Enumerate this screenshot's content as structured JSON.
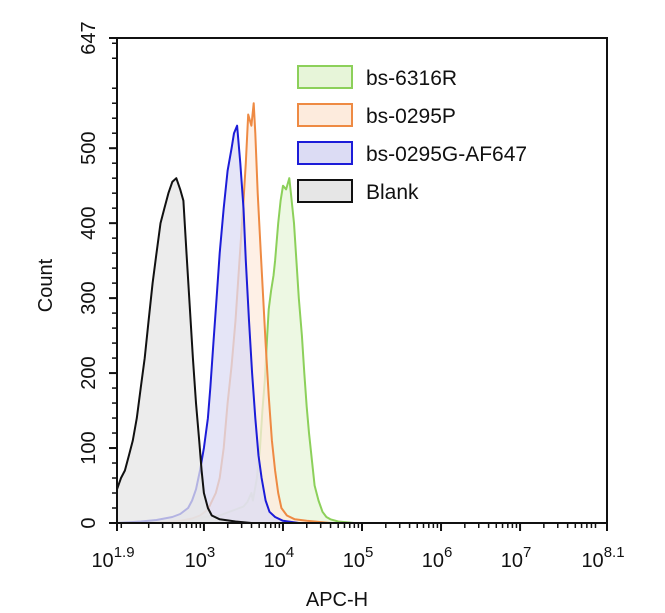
{
  "chart_data": {
    "type": "area",
    "title": "",
    "xlabel": "APC-H",
    "ylabel": "Count",
    "x_scale": "log10",
    "xlim_log10": [
      1.9,
      8.1
    ],
    "ylim": [
      0,
      647
    ],
    "x_ticks": [
      {
        "exp": 1.9,
        "base": "10",
        "sup": "1.9"
      },
      {
        "exp": 3,
        "base": "10",
        "sup": "3"
      },
      {
        "exp": 4,
        "base": "10",
        "sup": "4"
      },
      {
        "exp": 5,
        "base": "10",
        "sup": "5"
      },
      {
        "exp": 6,
        "base": "10",
        "sup": "6"
      },
      {
        "exp": 7,
        "base": "10",
        "sup": "7"
      },
      {
        "exp": 8.1,
        "base": "10",
        "sup": "8.1"
      }
    ],
    "y_ticks": [
      "0",
      "100",
      "200",
      "300",
      "400",
      "500",
      "647"
    ],
    "y_tick_values": [
      0,
      100,
      200,
      300,
      400,
      500,
      647
    ],
    "grid": false,
    "legend_position": "top-right",
    "series": [
      {
        "name": "bs-6316R",
        "color": "#8cd05a",
        "fill": "#e7f5d9",
        "points": [
          [
            2.0,
            0
          ],
          [
            2.5,
            1
          ],
          [
            2.7,
            2
          ],
          [
            2.9,
            5
          ],
          [
            3.0,
            8
          ],
          [
            3.2,
            10
          ],
          [
            3.4,
            18
          ],
          [
            3.5,
            22
          ],
          [
            3.55,
            28
          ],
          [
            3.6,
            40
          ],
          [
            3.62,
            30
          ],
          [
            3.67,
            60
          ],
          [
            3.71,
            100
          ],
          [
            3.74,
            150
          ],
          [
            3.77,
            190
          ],
          [
            3.8,
            250
          ],
          [
            3.82,
            285
          ],
          [
            3.85,
            310
          ],
          [
            3.88,
            330
          ],
          [
            3.9,
            350
          ],
          [
            3.94,
            400
          ],
          [
            3.97,
            430
          ],
          [
            4.0,
            450
          ],
          [
            4.04,
            445
          ],
          [
            4.08,
            460
          ],
          [
            4.1,
            440
          ],
          [
            4.14,
            400
          ],
          [
            4.17,
            350
          ],
          [
            4.2,
            300
          ],
          [
            4.24,
            250
          ],
          [
            4.27,
            200
          ],
          [
            4.3,
            155
          ],
          [
            4.33,
            120
          ],
          [
            4.37,
            80
          ],
          [
            4.4,
            50
          ],
          [
            4.45,
            30
          ],
          [
            4.5,
            15
          ],
          [
            4.55,
            8
          ],
          [
            4.6,
            5
          ],
          [
            4.7,
            2
          ],
          [
            4.9,
            0
          ]
        ]
      },
      {
        "name": "bs-0295P",
        "color": "#ee8a43",
        "fill": "#fdebdd",
        "points": [
          [
            2.2,
            0
          ],
          [
            2.5,
            1
          ],
          [
            2.7,
            3
          ],
          [
            2.85,
            6
          ],
          [
            2.95,
            10
          ],
          [
            3.05,
            18
          ],
          [
            3.15,
            40
          ],
          [
            3.2,
            60
          ],
          [
            3.25,
            100
          ],
          [
            3.3,
            160
          ],
          [
            3.35,
            210
          ],
          [
            3.4,
            270
          ],
          [
            3.45,
            350
          ],
          [
            3.5,
            430
          ],
          [
            3.53,
            480
          ],
          [
            3.56,
            545
          ],
          [
            3.6,
            530
          ],
          [
            3.63,
            560
          ],
          [
            3.65,
            520
          ],
          [
            3.68,
            440
          ],
          [
            3.72,
            360
          ],
          [
            3.75,
            300
          ],
          [
            3.78,
            240
          ],
          [
            3.82,
            170
          ],
          [
            3.86,
            110
          ],
          [
            3.9,
            70
          ],
          [
            3.94,
            40
          ],
          [
            3.98,
            20
          ],
          [
            4.05,
            10
          ],
          [
            4.15,
            5
          ],
          [
            4.3,
            3
          ],
          [
            4.5,
            1
          ],
          [
            4.6,
            0
          ]
        ]
      },
      {
        "name": "bs-0295G-AF647",
        "color": "#1c1cd8",
        "fill": "#dcdcf4",
        "points": [
          [
            1.9,
            0
          ],
          [
            2.2,
            2
          ],
          [
            2.4,
            4
          ],
          [
            2.6,
            8
          ],
          [
            2.7,
            12
          ],
          [
            2.8,
            20
          ],
          [
            2.85,
            30
          ],
          [
            2.9,
            45
          ],
          [
            2.95,
            70
          ],
          [
            3.0,
            100
          ],
          [
            3.05,
            140
          ],
          [
            3.08,
            180
          ],
          [
            3.12,
            240
          ],
          [
            3.16,
            300
          ],
          [
            3.2,
            360
          ],
          [
            3.25,
            420
          ],
          [
            3.3,
            470
          ],
          [
            3.35,
            500
          ],
          [
            3.38,
            520
          ],
          [
            3.42,
            530
          ],
          [
            3.46,
            480
          ],
          [
            3.5,
            420
          ],
          [
            3.53,
            350
          ],
          [
            3.57,
            270
          ],
          [
            3.61,
            200
          ],
          [
            3.65,
            140
          ],
          [
            3.69,
            90
          ],
          [
            3.73,
            60
          ],
          [
            3.78,
            30
          ],
          [
            3.83,
            15
          ],
          [
            3.9,
            8
          ],
          [
            4.0,
            3
          ],
          [
            4.2,
            0
          ]
        ]
      },
      {
        "name": "Blank",
        "color": "#111111",
        "fill": "#e6e6e6",
        "points": [
          [
            1.9,
            45
          ],
          [
            1.95,
            60
          ],
          [
            2.0,
            70
          ],
          [
            2.05,
            90
          ],
          [
            2.1,
            110
          ],
          [
            2.15,
            140
          ],
          [
            2.2,
            180
          ],
          [
            2.25,
            220
          ],
          [
            2.3,
            270
          ],
          [
            2.35,
            320
          ],
          [
            2.4,
            360
          ],
          [
            2.45,
            400
          ],
          [
            2.5,
            420
          ],
          [
            2.55,
            440
          ],
          [
            2.6,
            455
          ],
          [
            2.65,
            460
          ],
          [
            2.7,
            445
          ],
          [
            2.74,
            430
          ],
          [
            2.78,
            360
          ],
          [
            2.82,
            290
          ],
          [
            2.86,
            220
          ],
          [
            2.9,
            160
          ],
          [
            2.94,
            110
          ],
          [
            2.97,
            70
          ],
          [
            3.0,
            40
          ],
          [
            3.05,
            20
          ],
          [
            3.1,
            10
          ],
          [
            3.2,
            5
          ],
          [
            3.4,
            2
          ],
          [
            3.6,
            0
          ]
        ]
      }
    ]
  }
}
